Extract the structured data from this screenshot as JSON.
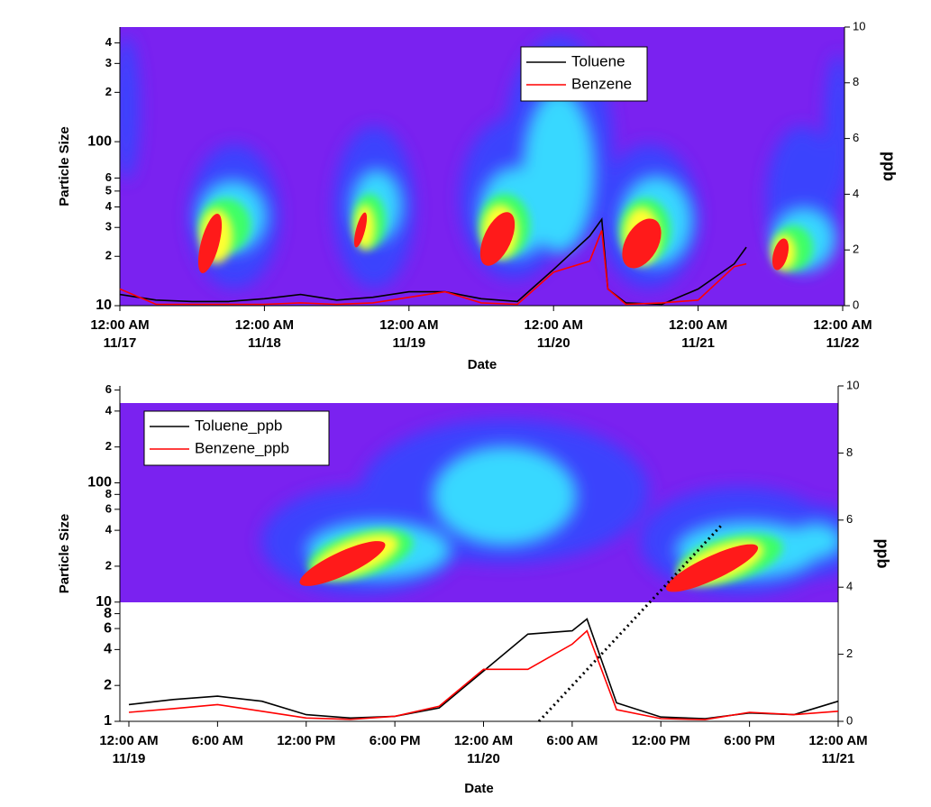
{
  "chart_data": [
    {
      "type": "line",
      "x_label": "Date",
      "y_label": "Particle Size",
      "y2_label": "ppb",
      "yscale": "log",
      "ylim": [
        10,
        500
      ],
      "yticks": [
        {
          "value": 400,
          "label": "4"
        },
        {
          "value": 300,
          "label": "3"
        },
        {
          "value": 200,
          "label": "2"
        },
        100,
        {
          "value": 60,
          "label": "6"
        },
        {
          "value": 50,
          "label": "5"
        },
        {
          "value": 40,
          "label": "4"
        },
        {
          "value": 30,
          "label": "3"
        },
        {
          "value": 20,
          "label": "2"
        },
        10
      ],
      "y2lim": [
        0,
        10
      ],
      "y2ticks": [
        0,
        2,
        4,
        6,
        8,
        10
      ],
      "xlim": [
        "11/17 00:00",
        "11/22 00:00"
      ],
      "xticks": [
        {
          "value": "11/17 00:00",
          "label": "12:00 AM",
          "sublabel": "11/17"
        },
        {
          "value": "11/18 00:00",
          "label": "12:00 AM",
          "sublabel": "11/18"
        },
        {
          "value": "11/19 00:00",
          "label": "12:00 AM",
          "sublabel": "11/19"
        },
        {
          "value": "11/20 00:00",
          "label": "12:00 AM",
          "sublabel": "11/20"
        },
        {
          "value": "11/21 00:00",
          "label": "12:00 AM",
          "sublabel": "11/21"
        },
        {
          "value": "11/22 00:00",
          "label": "12:00 AM",
          "sublabel": "11/22"
        }
      ],
      "x": [
        "11/17 00:00",
        "11/17 06:00",
        "11/17 12:00",
        "11/17 18:00",
        "11/18 00:00",
        "11/18 06:00",
        "11/18 12:00",
        "11/18 18:00",
        "11/19 00:00",
        "11/19 06:00",
        "11/19 12:00",
        "11/19 18:00",
        "11/20 00:00",
        "11/20 06:00",
        "11/20 08:00",
        "11/20 09:00",
        "11/20 12:00",
        "11/20 18:00",
        "11/21 00:00",
        "11/21 06:00",
        "11/21 08:00"
      ],
      "series": [
        {
          "name": "Toluene",
          "color": "#000000",
          "axis": "y2",
          "values": [
            0.4,
            0.2,
            0.15,
            0.15,
            0.25,
            0.4,
            0.2,
            0.3,
            0.5,
            0.5,
            0.25,
            0.15,
            1.3,
            2.5,
            3.1,
            0.6,
            0.1,
            0.05,
            0.6,
            1.5,
            2.1
          ]
        },
        {
          "name": "Benzene",
          "color": "#ff0000",
          "axis": "y2",
          "values": [
            0.6,
            0.05,
            0.05,
            0.05,
            0.05,
            0.1,
            0.05,
            0.1,
            0.3,
            0.5,
            0.1,
            0.05,
            1.2,
            1.6,
            2.7,
            0.6,
            0.05,
            0.1,
            0.2,
            1.4,
            1.5
          ]
        }
      ],
      "legend_position": "upper right"
    },
    {
      "type": "line",
      "x_label": "Date",
      "y_label": "Particle Size",
      "y2_label": "ppb",
      "yscale": "log",
      "ylim": [
        1,
        650
      ],
      "yticks": [
        {
          "value": 600,
          "label": "6"
        },
        {
          "value": 400,
          "label": "4"
        },
        {
          "value": 200,
          "label": "2"
        },
        100,
        {
          "value": 80,
          "label": "8"
        },
        {
          "value": 60,
          "label": "6"
        },
        {
          "value": 40,
          "label": "4"
        },
        {
          "value": 20,
          "label": "2"
        },
        10,
        8,
        6,
        4,
        2,
        1
      ],
      "y2lim": [
        0,
        10
      ],
      "y2ticks": [
        0,
        2,
        4,
        6,
        8,
        10
      ],
      "xlim": [
        "11/19 00:00",
        "11/21 00:00"
      ],
      "xticks": [
        {
          "value": "11/19 00:00",
          "label": "12:00 AM",
          "sublabel": "11/19"
        },
        {
          "value": "11/19 06:00",
          "label": "6:00 AM"
        },
        {
          "value": "11/19 12:00",
          "label": "12:00 PM"
        },
        {
          "value": "11/19 18:00",
          "label": "6:00 PM"
        },
        {
          "value": "11/20 00:00",
          "label": "12:00 AM",
          "sublabel": "11/20"
        },
        {
          "value": "11/20 06:00",
          "label": "6:00 AM"
        },
        {
          "value": "11/20 12:00",
          "label": "12:00 PM"
        },
        {
          "value": "11/20 18:00",
          "label": "6:00 PM"
        },
        {
          "value": "11/21 00:00",
          "label": "12:00 AM",
          "sublabel": "11/21"
        }
      ],
      "x": [
        "11/19 00:00",
        "11/19 03:00",
        "11/19 06:00",
        "11/19 09:00",
        "11/19 12:00",
        "11/19 15:00",
        "11/19 18:00",
        "11/19 21:00",
        "11/20 00:00",
        "11/20 03:00",
        "11/20 06:00",
        "11/20 07:00",
        "11/20 09:00",
        "11/20 12:00",
        "11/20 15:00",
        "11/20 18:00",
        "11/20 21:00",
        "11/21 00:00"
      ],
      "series": [
        {
          "name": "Toluene_ppb",
          "color": "#000000",
          "axis": "y2",
          "values": [
            0.5,
            0.65,
            0.75,
            0.6,
            0.2,
            0.1,
            0.15,
            0.4,
            1.5,
            2.6,
            2.7,
            3.05,
            0.55,
            0.13,
            0.08,
            0.25,
            0.2,
            0.6
          ]
        },
        {
          "name": "Benzene_ppb",
          "color": "#ff0000",
          "axis": "y2",
          "values": [
            0.27,
            0.38,
            0.5,
            0.3,
            0.1,
            0.06,
            0.15,
            0.45,
            1.55,
            1.55,
            2.3,
            2.7,
            0.35,
            0.08,
            0.05,
            0.27,
            0.2,
            0.3
          ]
        }
      ],
      "legend_position": "upper left"
    }
  ]
}
